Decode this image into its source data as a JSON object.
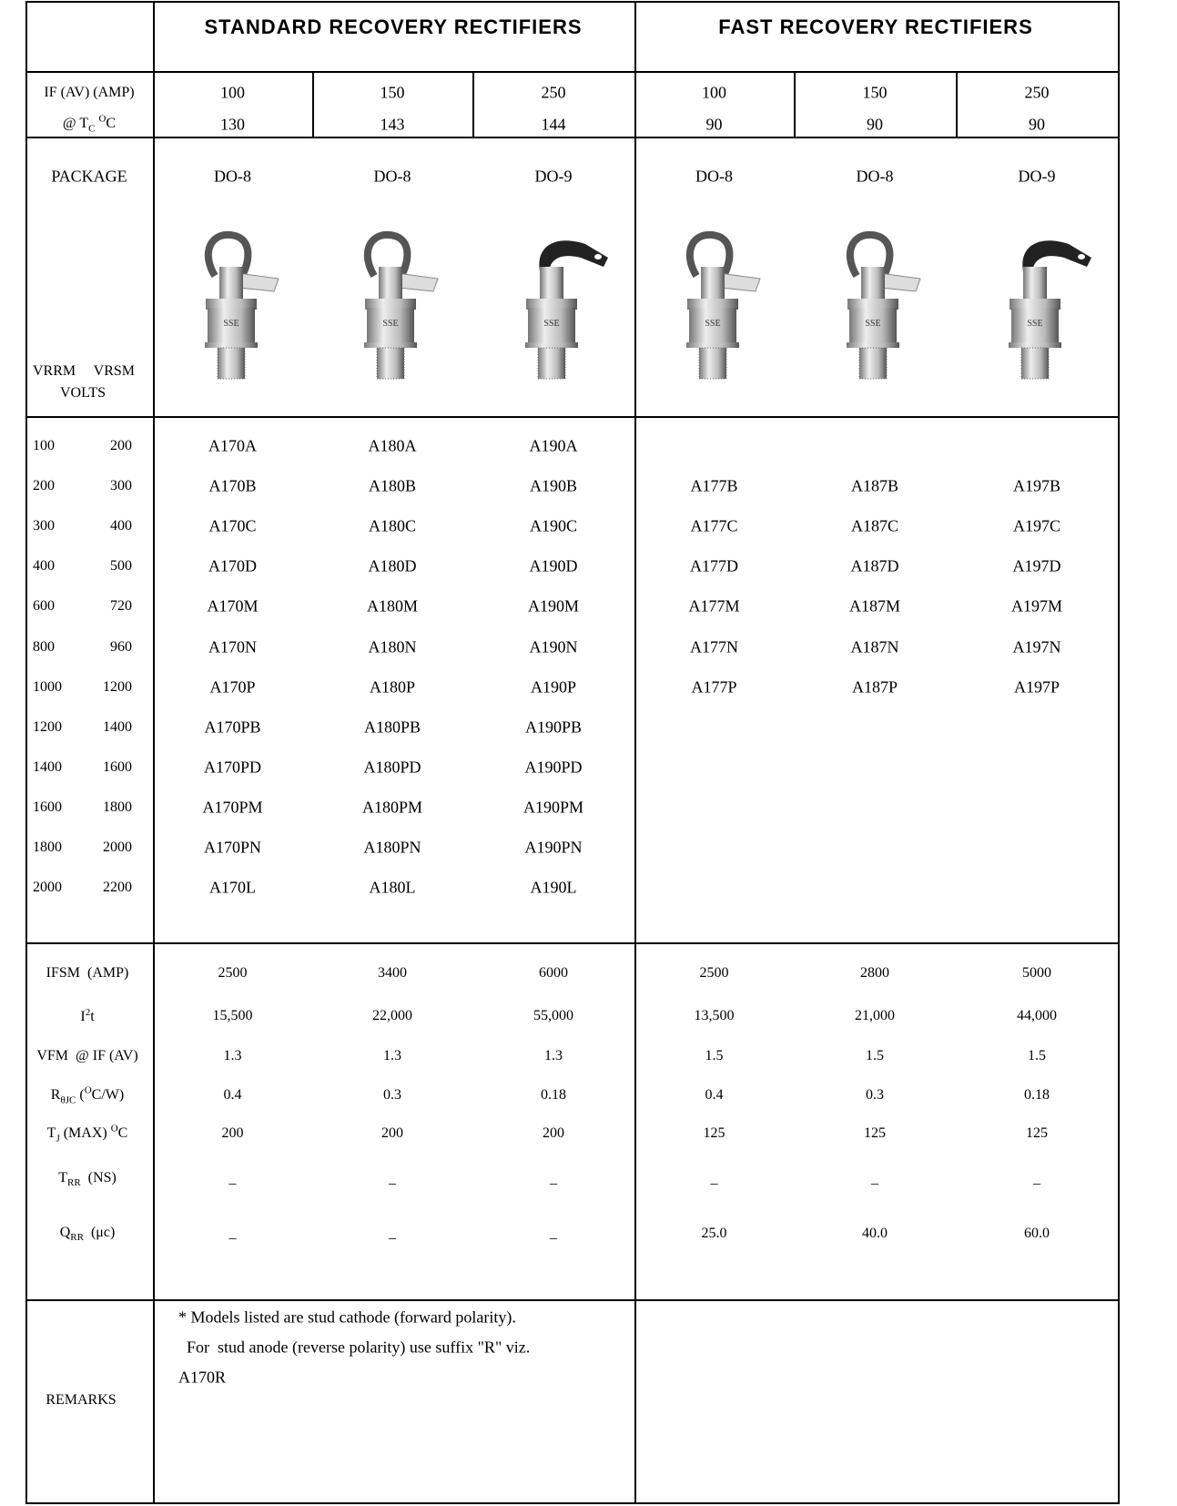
{
  "headers": {
    "standard": "STANDARD RECOVERY RECTIFIERS",
    "fast": "FAST RECOVERY RECTIFIERS"
  },
  "current_row": {
    "label": "IF (AV) (AMP)",
    "temp_label": [
      {
        "t": "@ T"
      },
      {
        "sub": "C"
      },
      {
        "t": " "
      },
      {
        "sup": "O"
      },
      {
        "t": "C"
      }
    ],
    "currents": [
      100,
      150,
      250,
      100,
      150,
      250
    ],
    "temps": [
      130,
      143,
      144,
      90,
      90,
      90
    ]
  },
  "package_row": {
    "label": "PACKAGE",
    "packages": [
      "DO-8",
      "DO-8",
      "DO-9",
      "DO-8",
      "DO-8",
      "DO-9"
    ],
    "image_text": "SSE",
    "voltage_labels": [
      "VRRM",
      "VRSM"
    ],
    "volts_label": "VOLTS"
  },
  "parts": [
    {
      "vrrm": 100,
      "vrsm": 200,
      "models": [
        "A170A",
        "A180A",
        "A190A",
        null,
        null,
        null
      ]
    },
    {
      "vrrm": 200,
      "vrsm": 300,
      "models": [
        "A170B",
        "A180B",
        "A190B",
        "A177B",
        "A187B",
        "A197B"
      ]
    },
    {
      "vrrm": 300,
      "vrsm": 400,
      "models": [
        "A170C",
        "A180C",
        "A190C",
        "A177C",
        "A187C",
        "A197C"
      ]
    },
    {
      "vrrm": 400,
      "vrsm": 500,
      "models": [
        "A170D",
        "A180D",
        "A190D",
        "A177D",
        "A187D",
        "A197D"
      ]
    },
    {
      "vrrm": 600,
      "vrsm": 720,
      "models": [
        "A170M",
        "A180M",
        "A190M",
        "A177M",
        "A187M",
        "A197M"
      ]
    },
    {
      "vrrm": 800,
      "vrsm": 960,
      "models": [
        "A170N",
        "A180N",
        "A190N",
        "A177N",
        "A187N",
        "A197N"
      ]
    },
    {
      "vrrm": 1000,
      "vrsm": 1200,
      "models": [
        "A170P",
        "A180P",
        "A190P",
        "A177P",
        "A187P",
        "A197P"
      ]
    },
    {
      "vrrm": 1200,
      "vrsm": 1400,
      "models": [
        "A170PB",
        "A180PB",
        "A190PB",
        null,
        null,
        null
      ]
    },
    {
      "vrrm": 1400,
      "vrsm": 1600,
      "models": [
        "A170PD",
        "A180PD",
        "A190PD",
        null,
        null,
        null
      ]
    },
    {
      "vrrm": 1600,
      "vrsm": 1800,
      "models": [
        "A170PM",
        "A180PM",
        "A190PM",
        null,
        null,
        null
      ]
    },
    {
      "vrrm": 1800,
      "vrsm": 2000,
      "models": [
        "A170PN",
        "A180PN",
        "A190PN",
        null,
        null,
        null
      ]
    },
    {
      "vrrm": 2000,
      "vrsm": 2200,
      "models": [
        "A170L",
        "A180L",
        "A190L",
        null,
        null,
        null
      ]
    }
  ],
  "params": [
    {
      "label": [
        {
          "t": "IFSM  (AMP)"
        }
      ],
      "values": [
        "2500",
        "3400",
        "6000",
        "2500",
        "2800",
        "5000"
      ]
    },
    {
      "label": [
        {
          "t": "I"
        },
        {
          "sup": "2"
        },
        {
          "t": "t"
        }
      ],
      "values": [
        "15,500",
        "22,000",
        "55,000",
        "13,500",
        "21,000",
        "44,000"
      ]
    },
    {
      "label": [
        {
          "t": "VFM  @ IF (AV)"
        }
      ],
      "values": [
        "1.3",
        "1.3",
        "1.3",
        "1.5",
        "1.5",
        "1.5"
      ]
    },
    {
      "label": [
        {
          "t": "R"
        },
        {
          "sub": "θJC"
        },
        {
          "t": " ("
        },
        {
          "sup": "O"
        },
        {
          "t": "C/W)"
        }
      ],
      "values": [
        "0.4",
        "0.3",
        "0.18",
        "0.4",
        "0.3",
        "0.18"
      ]
    },
    {
      "label": [
        {
          "t": "T"
        },
        {
          "sub": "J"
        },
        {
          "t": " (MAX) "
        },
        {
          "sup": "O"
        },
        {
          "t": "C"
        }
      ],
      "values": [
        "200",
        "200",
        "200",
        "125",
        "125",
        "125"
      ]
    },
    {
      "label": [
        {
          "t": "T"
        },
        {
          "sub": "RR"
        },
        {
          "t": "  (NS)"
        }
      ],
      "values": [
        "_",
        "_",
        "_",
        "_",
        "_",
        "_"
      ]
    },
    {
      "label": [
        {
          "t": "Q"
        },
        {
          "sub": "RR"
        },
        {
          "t": "  (μc)"
        }
      ],
      "values": [
        "_",
        "_",
        "_",
        "25.0",
        "40.0",
        "60.0"
      ]
    }
  ],
  "remarks": {
    "label": "REMARKS",
    "lines": [
      "* Models listed are stud cathode (forward polarity).",
      "  For  stud anode (reverse polarity) use suffix \"R\" viz.",
      "A170R"
    ]
  }
}
